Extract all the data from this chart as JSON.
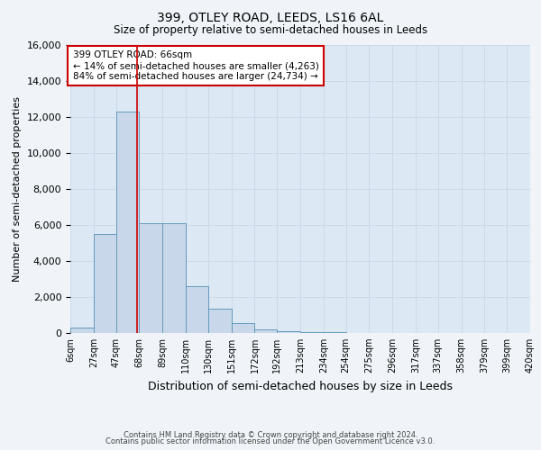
{
  "title1": "399, OTLEY ROAD, LEEDS, LS16 6AL",
  "title2": "Size of property relative to semi-detached houses in Leeds",
  "xlabel": "Distribution of semi-detached houses by size in Leeds",
  "ylabel": "Number of semi-detached properties",
  "footer1": "Contains HM Land Registry data © Crown copyright and database right 2024.",
  "footer2": "Contains public sector information licensed under the Open Government Licence v3.0.",
  "annotation_title": "399 OTLEY ROAD: 66sqm",
  "annotation_line1": "← 14% of semi-detached houses are smaller (4,263)",
  "annotation_line2": "84% of semi-detached houses are larger (24,734) →",
  "property_size": 66,
  "bin_edges": [
    6,
    27,
    47,
    68,
    89,
    110,
    130,
    151,
    172,
    192,
    213,
    234,
    254,
    275,
    296,
    317,
    337,
    358,
    379,
    399,
    420
  ],
  "bar_values": [
    300,
    5500,
    12300,
    6100,
    6100,
    2600,
    1350,
    550,
    210,
    100,
    55,
    30,
    15,
    10,
    5,
    4,
    3,
    2,
    1,
    1
  ],
  "bar_color": "#c8d8ea",
  "bar_edge_color": "#6699bb",
  "marker_color": "#cc0000",
  "ylim": [
    0,
    16000
  ],
  "yticks": [
    0,
    2000,
    4000,
    6000,
    8000,
    10000,
    12000,
    14000,
    16000
  ],
  "grid_color": "#c8d8e8",
  "bg_color": "#dce8f4",
  "fig_bg_color": "#f0f4f8",
  "annotation_box_color": "#ffffff",
  "annotation_border_color": "#cc0000",
  "title_fontsize": 10,
  "subtitle_fontsize": 8.5,
  "ylabel_fontsize": 8,
  "xlabel_fontsize": 9,
  "ytick_fontsize": 8,
  "xtick_fontsize": 7,
  "footer_fontsize": 6,
  "ann_fontsize": 7.5
}
